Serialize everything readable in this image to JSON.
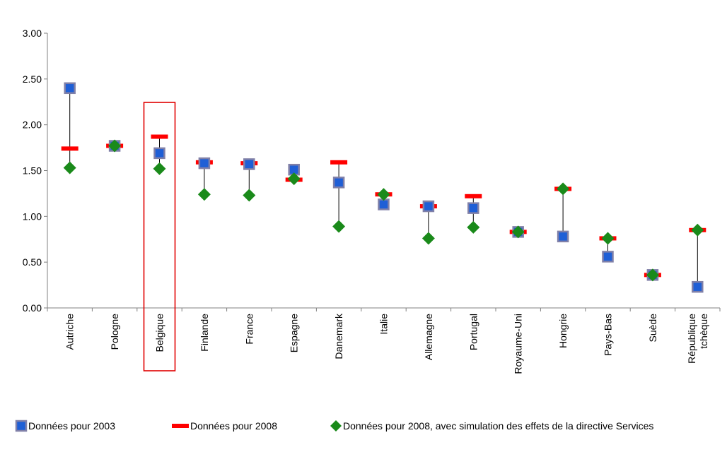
{
  "chart_data": {
    "type": "scatter",
    "title": "",
    "xlabel": "",
    "ylabel": "",
    "ylim": [
      0,
      3
    ],
    "yticks": [
      "0.00",
      "0.50",
      "1.00",
      "1.50",
      "2.00",
      "2.50",
      "3.00"
    ],
    "grid": false,
    "legend_position": "bottom",
    "categories": [
      "Autriche",
      "Pologne",
      "Belgique",
      "Finlande",
      "France",
      "Espagne",
      "Danemark",
      "Italie",
      "Allemagne",
      "Portugal",
      "Royaume-Uni",
      "Hongrie",
      "Pays-Bas",
      "Suède",
      "République tchèque"
    ],
    "category_label_lines": [
      [
        "Autriche"
      ],
      [
        "Pologne"
      ],
      [
        "Belgique"
      ],
      [
        "Finlande"
      ],
      [
        "France"
      ],
      [
        "Espagne"
      ],
      [
        "Danemark"
      ],
      [
        "Italie"
      ],
      [
        "Allemagne"
      ],
      [
        "Portugal"
      ],
      [
        "Royaume-Uni"
      ],
      [
        "Hongrie"
      ],
      [
        "Pays-Bas"
      ],
      [
        "Suède"
      ],
      [
        "République",
        "tchèque"
      ]
    ],
    "highlighted_category": "Belgique",
    "series": [
      {
        "name": "Données pour 2003",
        "marker": "square",
        "color": "#1f5fd6",
        "border": "#8080a8",
        "values": [
          2.4,
          1.77,
          1.69,
          1.58,
          1.57,
          1.51,
          1.37,
          1.13,
          1.11,
          1.09,
          0.83,
          0.78,
          0.56,
          0.36,
          0.23
        ]
      },
      {
        "name": "Données pour 2008",
        "marker": "dash",
        "color": "#ff0000",
        "values": [
          1.74,
          1.77,
          1.87,
          1.59,
          1.58,
          1.4,
          1.59,
          1.24,
          1.11,
          1.22,
          0.83,
          1.3,
          0.76,
          0.36,
          0.85
        ]
      },
      {
        "name": "Données pour 2008, avec simulation des effets de la directive Services",
        "marker": "diamond",
        "color": "#1a8a1a",
        "values": [
          1.53,
          1.77,
          1.52,
          1.24,
          1.23,
          1.41,
          0.89,
          1.24,
          0.76,
          0.88,
          0.83,
          1.3,
          0.76,
          0.36,
          0.85
        ]
      }
    ]
  }
}
